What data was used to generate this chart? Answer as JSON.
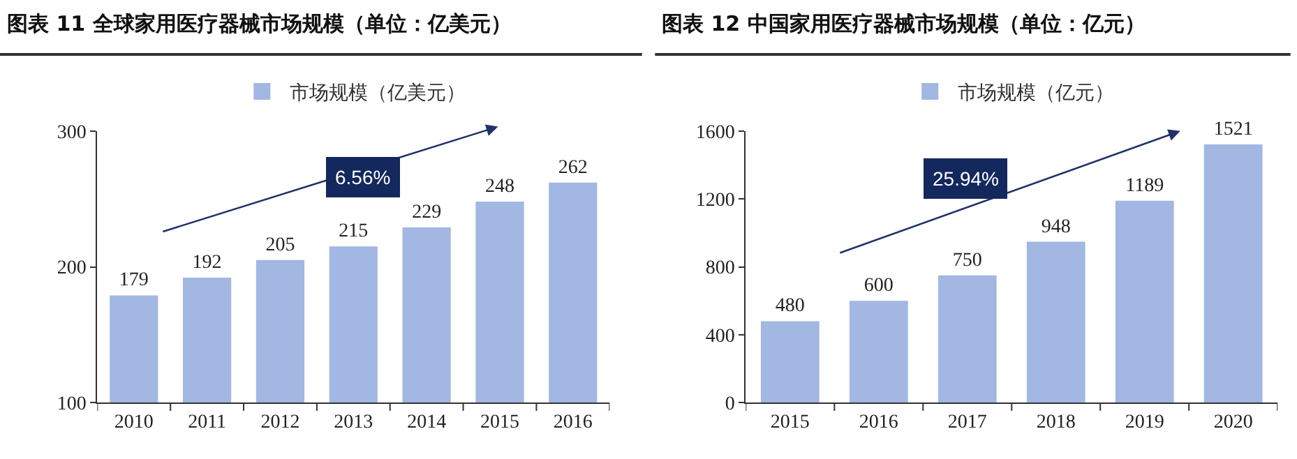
{
  "chart_data": [
    {
      "type": "bar",
      "title": "图表 11 全球家用医疗器械市场规模（单位：亿美元）",
      "categories": [
        "2010",
        "2011",
        "2012",
        "2013",
        "2014",
        "2015",
        "2016"
      ],
      "series": [
        {
          "name": "市场规模（亿美元）",
          "color": "#a2b7e1",
          "values": [
            179,
            192,
            205,
            215,
            229,
            248,
            262
          ]
        }
      ],
      "ylim": [
        100,
        300
      ],
      "yticks": [
        100,
        200,
        300
      ],
      "data_labels": true,
      "legend": "top",
      "annotations": [
        "6.56%"
      ]
    },
    {
      "type": "bar",
      "title": "图表 12 中国家用医疗器械市场规模（单位：亿元）",
      "categories": [
        "2015",
        "2016",
        "2017",
        "2018",
        "2019",
        "2020"
      ],
      "series": [
        {
          "name": "市场规模（亿元）",
          "color": "#a2b7e1",
          "values": [
            480,
            600,
            750,
            948,
            1189,
            1521
          ]
        }
      ],
      "ylim": [
        0,
        1600
      ],
      "yticks": [
        0,
        400,
        800,
        1200,
        1600
      ],
      "data_labels": true,
      "legend": "top",
      "annotations": [
        "25.94%"
      ]
    }
  ]
}
